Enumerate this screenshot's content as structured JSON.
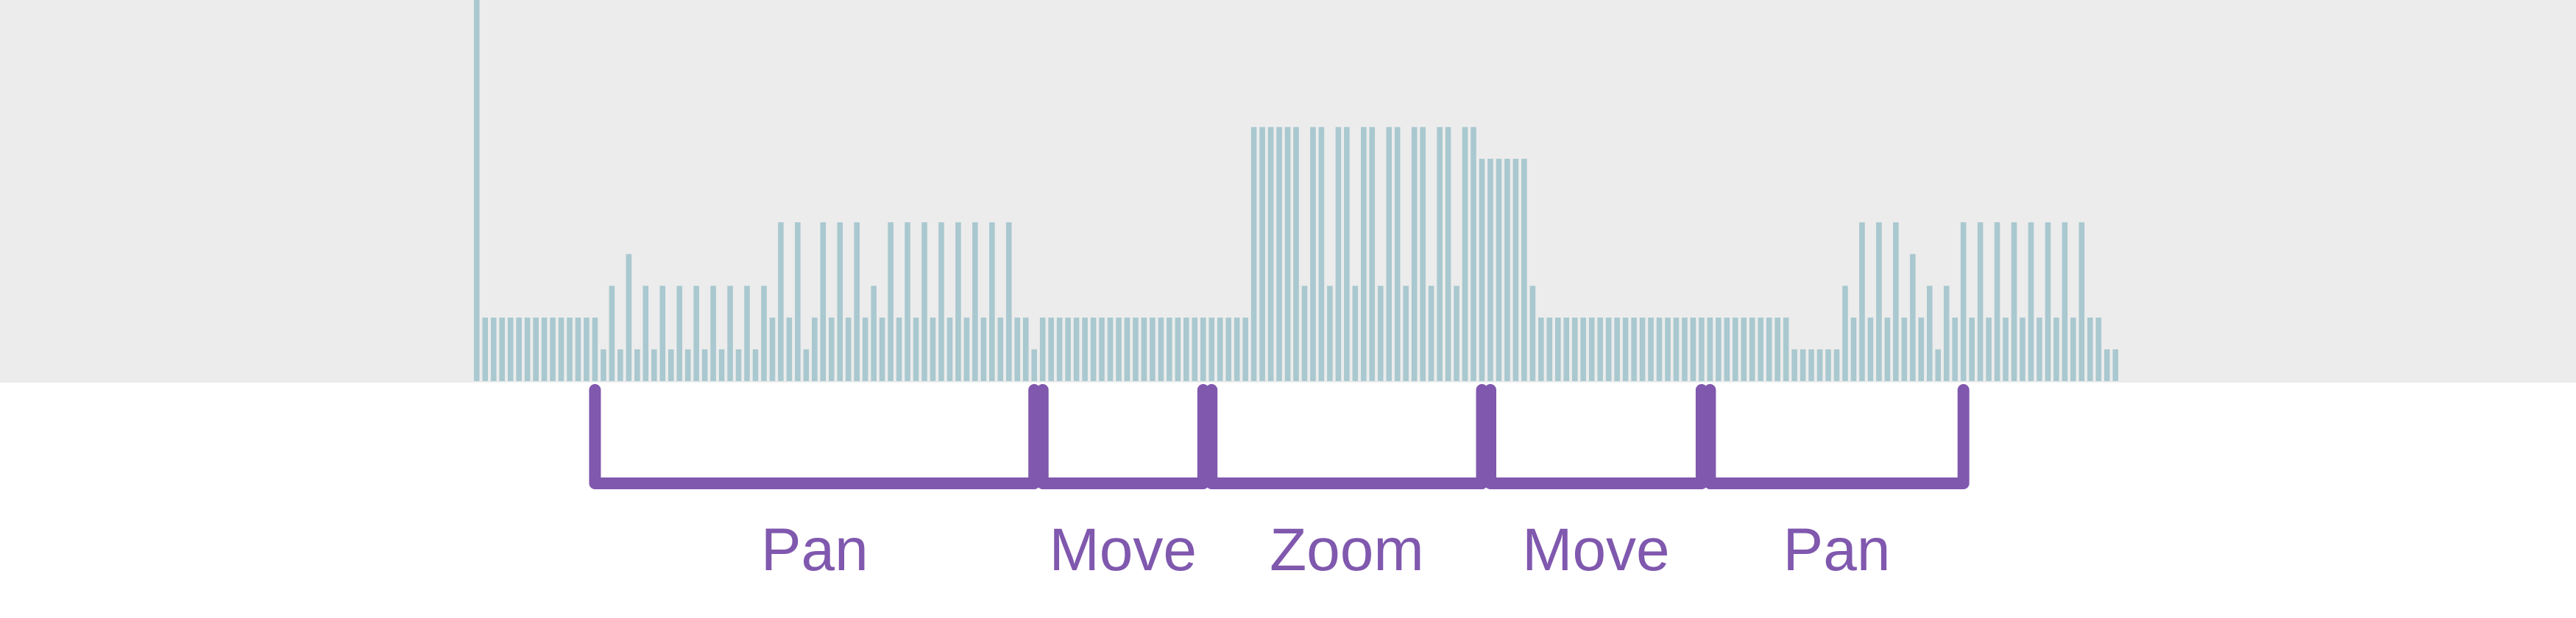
{
  "colors": {
    "panel_bg": "#ececec",
    "bar": "#a9c8cf",
    "bracket": "#8058ae",
    "label": "#8058ae",
    "background": "#ffffff"
  },
  "chart_data": {
    "type": "bar",
    "title": "",
    "xlabel": "",
    "ylabel": "",
    "ylim": [
      0,
      12
    ],
    "grid": false,
    "legend": "none",
    "values": [
      12,
      2,
      2,
      2,
      2,
      2,
      2,
      2,
      2,
      2,
      2,
      2,
      2,
      2,
      2,
      1,
      3,
      1,
      4,
      1,
      3,
      1,
      3,
      1,
      3,
      1,
      3,
      1,
      3,
      1,
      3,
      1,
      3,
      1,
      3,
      2,
      5,
      2,
      5,
      1,
      2,
      5,
      2,
      5,
      2,
      5,
      2,
      3,
      2,
      5,
      2,
      5,
      2,
      5,
      2,
      5,
      2,
      5,
      2,
      5,
      2,
      5,
      2,
      5,
      2,
      2,
      1,
      2,
      2,
      2,
      2,
      2,
      2,
      2,
      2,
      2,
      2,
      2,
      2,
      2,
      2,
      2,
      2,
      2,
      2,
      2,
      2,
      2,
      2,
      2,
      2,
      2,
      8,
      8,
      8,
      8,
      8,
      8,
      3,
      8,
      8,
      3,
      8,
      8,
      3,
      8,
      8,
      3,
      8,
      8,
      3,
      8,
      8,
      3,
      8,
      8,
      3,
      8,
      8,
      7,
      7,
      7,
      7,
      7,
      7,
      3,
      2,
      2,
      2,
      2,
      2,
      2,
      2,
      2,
      2,
      2,
      2,
      2,
      2,
      2,
      2,
      2,
      2,
      2,
      2,
      2,
      2,
      2,
      2,
      2,
      2,
      2,
      2,
      2,
      2,
      2,
      1,
      1,
      1,
      1,
      1,
      1,
      3,
      2,
      5,
      2,
      5,
      2,
      5,
      2,
      4,
      2,
      3,
      1,
      3,
      2,
      5,
      2,
      5,
      2,
      5,
      2,
      5,
      2,
      5,
      2,
      5,
      2,
      5,
      2,
      5,
      2,
      2,
      1,
      1
    ],
    "segments": [
      {
        "label": "Pan",
        "start_bar": 14,
        "end_bar": 66
      },
      {
        "label": "Move",
        "start_bar": 67,
        "end_bar": 86
      },
      {
        "label": "Zoom",
        "start_bar": 87,
        "end_bar": 119
      },
      {
        "label": "Move",
        "start_bar": 120,
        "end_bar": 145
      },
      {
        "label": "Pan",
        "start_bar": 146,
        "end_bar": 176
      }
    ]
  }
}
